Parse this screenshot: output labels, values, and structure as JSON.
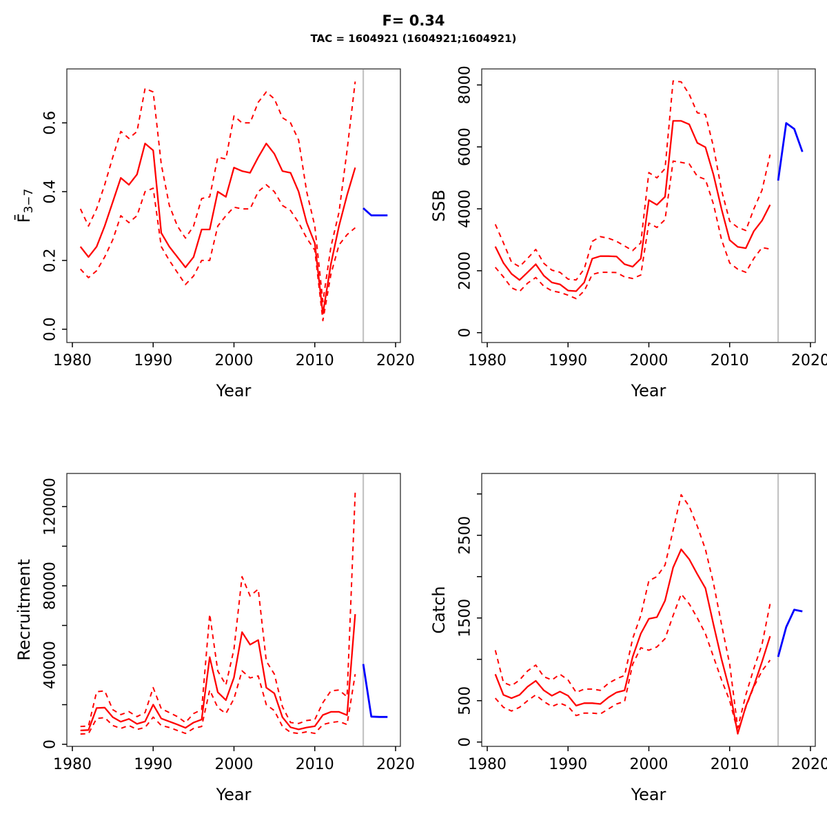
{
  "title": "F= 0.34",
  "subtitle": "TAC = 1604921 (1604921;1604921)",
  "colors": {
    "estimate": "#ff0000",
    "confidence": "#ff0000",
    "forecast": "#0000ff",
    "divider": "#c3c3c3",
    "axis": "#2b2b2b"
  },
  "forecast_start_year": 2016,
  "x_axis": {
    "label": "Year",
    "ticks": [
      1980,
      1990,
      2000,
      2010,
      2020
    ],
    "tick_labels": [
      "1980",
      "1990",
      "2000",
      "2010",
      "2020"
    ]
  },
  "chart_data": [
    {
      "id": "f",
      "type": "line",
      "ylabel": {
        "text": "F̄",
        "sub": "3−7"
      },
      "xlabel": "Year",
      "legend": "none",
      "grid": false,
      "ylim": [
        0,
        0.76
      ],
      "yticks": {
        "values": [
          0,
          0.2,
          0.4,
          0.6
        ],
        "labels": [
          "0.0",
          "0.2",
          "0.4",
          "0.6"
        ]
      },
      "x": [
        1981,
        1982,
        1983,
        1984,
        1985,
        1986,
        1987,
        1988,
        1989,
        1990,
        1991,
        1992,
        1993,
        1994,
        1995,
        1996,
        1997,
        1998,
        1999,
        2000,
        2001,
        2002,
        2003,
        2004,
        2005,
        2006,
        2007,
        2008,
        2009,
        2010,
        2011,
        2012,
        2013,
        2014,
        2015
      ],
      "series": [
        {
          "name": "median",
          "style": "solid",
          "color": "#ff0000",
          "values": [
            0.24,
            0.21,
            0.24,
            0.3,
            0.37,
            0.44,
            0.42,
            0.45,
            0.54,
            0.52,
            0.28,
            0.24,
            0.21,
            0.18,
            0.21,
            0.29,
            0.29,
            0.4,
            0.385,
            0.47,
            0.46,
            0.455,
            0.5,
            0.54,
            0.51,
            0.46,
            0.455,
            0.4,
            0.31,
            0.25,
            0.045,
            0.19,
            0.3,
            0.39,
            0.47
          ]
        },
        {
          "name": "upper-ci",
          "style": "dashed",
          "color": "#ff0000",
          "values": [
            0.35,
            0.3,
            0.35,
            0.42,
            0.5,
            0.575,
            0.555,
            0.575,
            0.7,
            0.69,
            0.48,
            0.36,
            0.3,
            0.265,
            0.3,
            0.38,
            0.385,
            0.5,
            0.495,
            0.62,
            0.6,
            0.6,
            0.66,
            0.69,
            0.67,
            0.615,
            0.6,
            0.55,
            0.4,
            0.3,
            0.08,
            0.24,
            0.34,
            0.52,
            0.72
          ]
        },
        {
          "name": "lower-ci",
          "style": "dashed",
          "color": "#ff0000",
          "values": [
            0.175,
            0.15,
            0.17,
            0.21,
            0.26,
            0.33,
            0.31,
            0.33,
            0.4,
            0.41,
            0.24,
            0.2,
            0.165,
            0.13,
            0.155,
            0.2,
            0.2,
            0.3,
            0.33,
            0.355,
            0.35,
            0.35,
            0.4,
            0.42,
            0.4,
            0.36,
            0.345,
            0.31,
            0.265,
            0.23,
            0.025,
            0.16,
            0.245,
            0.275,
            0.295
          ]
        }
      ],
      "forecast": {
        "name": "forecast",
        "style": "solid",
        "color": "#0000ff",
        "x": [
          2016,
          2017,
          2018,
          2019
        ],
        "values": [
          0.352,
          0.331,
          0.331,
          0.331
        ]
      }
    },
    {
      "id": "ssb",
      "type": "line",
      "ylabel": {
        "text": "SSB"
      },
      "xlabel": "Year",
      "legend": "none",
      "grid": false,
      "ylim": [
        0,
        8500
      ],
      "yticks": {
        "values": [
          0,
          2000,
          4000,
          6000,
          8000
        ],
        "labels": [
          "0",
          "2000",
          "4000",
          "6000",
          "8000"
        ]
      },
      "x": [
        1981,
        1982,
        1983,
        1984,
        1985,
        1986,
        1987,
        1988,
        1989,
        1990,
        1991,
        1992,
        1993,
        1994,
        1995,
        1996,
        1997,
        1998,
        1999,
        2000,
        2001,
        2002,
        2003,
        2004,
        2005,
        2006,
        2007,
        2008,
        2009,
        2010,
        2011,
        2012,
        2013,
        2014,
        2015
      ],
      "series": [
        {
          "name": "median",
          "style": "solid",
          "color": "#ff0000",
          "values": [
            2780,
            2250,
            1900,
            1700,
            1950,
            2210,
            1840,
            1620,
            1560,
            1360,
            1340,
            1620,
            2390,
            2470,
            2470,
            2460,
            2210,
            2130,
            2390,
            4280,
            4130,
            4390,
            6840,
            6840,
            6730,
            6130,
            5990,
            5100,
            3990,
            2990,
            2770,
            2730,
            3280,
            3620,
            4130
          ]
        },
        {
          "name": "upper-ci",
          "style": "dashed",
          "color": "#ff0000",
          "values": [
            3500,
            2900,
            2280,
            2130,
            2400,
            2690,
            2240,
            2020,
            1950,
            1730,
            1700,
            2060,
            2950,
            3100,
            3050,
            2950,
            2800,
            2650,
            2900,
            5170,
            5000,
            5300,
            8130,
            8100,
            7700,
            7100,
            7050,
            6000,
            4600,
            3600,
            3400,
            3300,
            4000,
            4600,
            5750
          ]
        },
        {
          "name": "lower-ci",
          "style": "dashed",
          "color": "#ff0000",
          "values": [
            2110,
            1800,
            1450,
            1330,
            1600,
            1780,
            1500,
            1350,
            1300,
            1210,
            1100,
            1350,
            1880,
            1950,
            1950,
            1940,
            1800,
            1750,
            1860,
            3540,
            3400,
            3650,
            5540,
            5500,
            5450,
            5050,
            4950,
            4150,
            3000,
            2250,
            2050,
            1950,
            2400,
            2750,
            2700
          ]
        }
      ],
      "forecast": {
        "name": "forecast",
        "style": "solid",
        "color": "#0000ff",
        "x": [
          2016,
          2017,
          2018,
          2019
        ],
        "values": [
          4910,
          6770,
          6580,
          5840
        ]
      }
    },
    {
      "id": "recruitment",
      "type": "line",
      "ylabel": {
        "text": "Recruitment"
      },
      "xlabel": "Year",
      "legend": "none",
      "grid": false,
      "ylim": [
        0,
        136000
      ],
      "yticks": {
        "values": [
          0,
          20000,
          40000,
          60000,
          80000,
          100000,
          120000
        ],
        "labels": [
          "0",
          "",
          "40000",
          "",
          "80000",
          "",
          "120000"
        ]
      },
      "x": [
        1981,
        1982,
        1983,
        1984,
        1985,
        1986,
        1987,
        1988,
        1989,
        1990,
        1991,
        1992,
        1993,
        1994,
        1995,
        1996,
        1997,
        1998,
        1999,
        2000,
        2001,
        2002,
        2003,
        2004,
        2005,
        2006,
        2007,
        2008,
        2009,
        2010,
        2011,
        2012,
        2013,
        2014,
        2015
      ],
      "series": [
        {
          "name": "median",
          "style": "solid",
          "color": "#ff0000",
          "values": [
            7000,
            7200,
            18300,
            18500,
            13700,
            11400,
            12800,
            10300,
            11500,
            20000,
            13000,
            11500,
            10000,
            8300,
            11000,
            12500,
            44000,
            26300,
            22300,
            33700,
            56600,
            50300,
            52600,
            28600,
            25700,
            13700,
            8600,
            7500,
            8500,
            9100,
            14800,
            16400,
            16400,
            14700,
            65700
          ]
        },
        {
          "name": "upper-ci",
          "style": "dashed",
          "color": "#ff0000",
          "values": [
            9000,
            9200,
            26500,
            27000,
            17500,
            15000,
            16500,
            14000,
            16000,
            28600,
            18000,
            16000,
            14000,
            11000,
            15500,
            17500,
            65700,
            37000,
            30000,
            48000,
            84600,
            74900,
            78300,
            42000,
            35400,
            19000,
            11000,
            10500,
            12000,
            12500,
            21000,
            27000,
            27400,
            24000,
            127000
          ]
        },
        {
          "name": "lower-ci",
          "style": "dashed",
          "color": "#ff0000",
          "values": [
            5200,
            5400,
            13000,
            13500,
            9500,
            8000,
            9500,
            7500,
            8500,
            13700,
            9500,
            8500,
            7000,
            5500,
            8000,
            9000,
            27400,
            18500,
            15500,
            23000,
            37100,
            33500,
            34500,
            20000,
            17000,
            9000,
            6000,
            5500,
            6300,
            5500,
            10000,
            11000,
            11500,
            10000,
            35400
          ]
        }
      ],
      "forecast": {
        "name": "forecast",
        "style": "solid",
        "color": "#0000ff",
        "x": [
          2016,
          2017,
          2018,
          2019
        ],
        "values": [
          40500,
          14000,
          13800,
          13800
        ]
      }
    },
    {
      "id": "catch",
      "type": "line",
      "ylabel": {
        "text": "Catch"
      },
      "xlabel": "Year",
      "legend": "none",
      "grid": false,
      "ylim": [
        0,
        3250
      ],
      "yticks": {
        "values": [
          0,
          500,
          1000,
          1500,
          2000,
          2500,
          3000
        ],
        "labels": [
          "0",
          "500",
          "",
          "1500",
          "",
          "2500",
          ""
        ]
      },
      "x": [
        1981,
        1982,
        1983,
        1984,
        1985,
        1986,
        1987,
        1988,
        1989,
        1990,
        1991,
        1992,
        1993,
        1994,
        1995,
        1996,
        1997,
        1998,
        1999,
        2000,
        2001,
        2002,
        2003,
        2004,
        2005,
        2006,
        2007,
        2008,
        2009,
        2010,
        2011,
        2012,
        2013,
        2014,
        2015
      ],
      "series": [
        {
          "name": "median",
          "style": "solid",
          "color": "#ff0000",
          "values": [
            820,
            570,
            530,
            570,
            670,
            740,
            625,
            560,
            610,
            560,
            440,
            470,
            470,
            460,
            540,
            600,
            625,
            1030,
            1310,
            1490,
            1510,
            1710,
            2110,
            2330,
            2210,
            2030,
            1860,
            1420,
            1000,
            625,
            100,
            430,
            680,
            970,
            1280
          ]
        },
        {
          "name": "upper-ci",
          "style": "dashed",
          "color": "#ff0000",
          "values": [
            1110,
            720,
            680,
            750,
            860,
            930,
            790,
            750,
            820,
            750,
            600,
            640,
            640,
            625,
            710,
            765,
            805,
            1250,
            1530,
            1950,
            2000,
            2140,
            2560,
            2990,
            2850,
            2610,
            2330,
            1920,
            1420,
            940,
            170,
            570,
            890,
            1180,
            1670
          ]
        },
        {
          "name": "lower-ci",
          "style": "dashed",
          "color": "#ff0000",
          "values": [
            530,
            420,
            375,
            420,
            500,
            570,
            490,
            430,
            470,
            430,
            320,
            350,
            350,
            340,
            400,
            460,
            490,
            940,
            1140,
            1110,
            1150,
            1250,
            1530,
            1790,
            1670,
            1500,
            1310,
            1030,
            750,
            500,
            125,
            420,
            670,
            860,
            990
          ]
        }
      ],
      "forecast": {
        "name": "forecast",
        "style": "solid",
        "color": "#0000ff",
        "x": [
          2016,
          2017,
          2018,
          2019
        ],
        "values": [
          1030,
          1390,
          1600,
          1580
        ]
      }
    }
  ]
}
